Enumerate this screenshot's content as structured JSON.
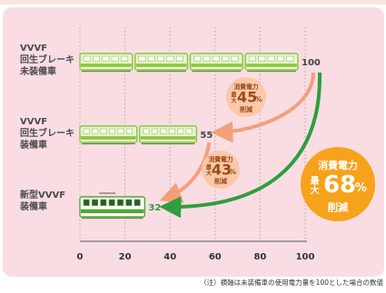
{
  "chart_data": {
    "type": "bar",
    "x_ticks": [
      0,
      20,
      40,
      60,
      80,
      100
    ],
    "xlim": [
      0,
      100
    ],
    "categories": [
      "VVVF\n回生ブレーキ\n未装備車",
      "VVVF\n回生ブレーキ\n装備車",
      "新型VVVF\n装備車"
    ],
    "values": [
      100,
      55,
      32
    ],
    "value_labels": [
      "100",
      "55",
      "32"
    ],
    "annotations": [
      {
        "line1": "消費電力",
        "prefix": "最\n大",
        "number": "45",
        "unit": "%",
        "suffix": "削減"
      },
      {
        "line1": "消費電力",
        "prefix": "最\n大",
        "number": "43",
        "unit": "%",
        "suffix": "削減"
      },
      {
        "line1": "消費電力",
        "prefix": "最\n大",
        "number": "68",
        "unit": "%",
        "suffix": "削減"
      }
    ],
    "note": "（注）横軸は未装備車の使用電力量を100とした場合の数値",
    "grid": true
  },
  "colors": {
    "background": "#f9dde3",
    "train_green": "#8cc63f",
    "train_light": "#e9f3d4",
    "new_train": "#4ea82e",
    "arrow_orange": "#f3a07a",
    "arrow_green": "#2e9e3e",
    "circle_orange": "#f7a21b",
    "label_brown": "#9a4a18"
  }
}
